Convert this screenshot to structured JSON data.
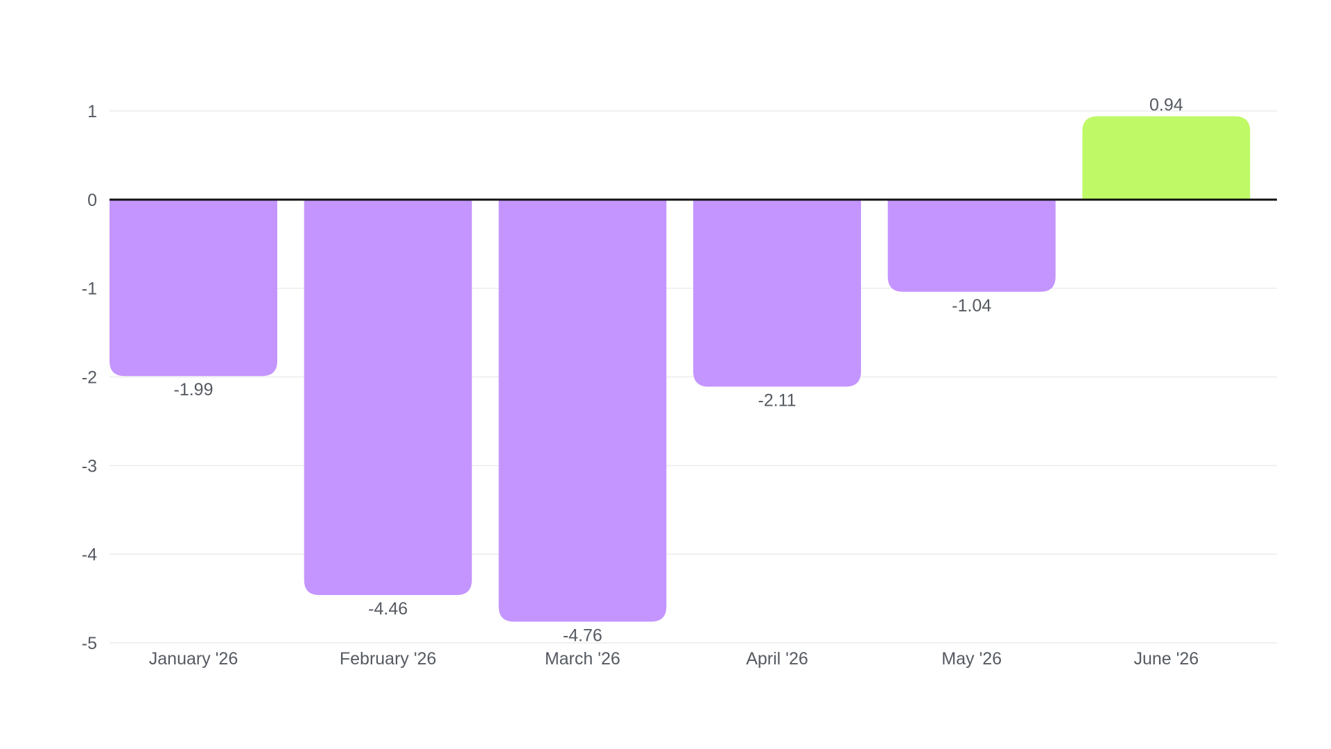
{
  "chart_data": {
    "type": "bar",
    "categories": [
      "January '26",
      "February '26",
      "March '26",
      "April '26",
      "May '26",
      "June '26"
    ],
    "values": [
      -1.99,
      -4.46,
      -4.76,
      -2.11,
      -1.04,
      0.94
    ],
    "value_labels": [
      "-1.99",
      "-4.46",
      "-4.76",
      "-2.11",
      "-1.04",
      "0.94"
    ],
    "title": "",
    "xlabel": "",
    "ylabel": "",
    "ylim": [
      -5,
      1
    ],
    "yticks": [
      1,
      0,
      -1,
      -2,
      -3,
      -4,
      -5
    ],
    "grid": true,
    "legend": "none",
    "colors": {
      "negative": "#c495ff",
      "positive": "#bff966",
      "zero_line": "#111111",
      "grid": "#ececec",
      "text": "#555a61"
    }
  }
}
